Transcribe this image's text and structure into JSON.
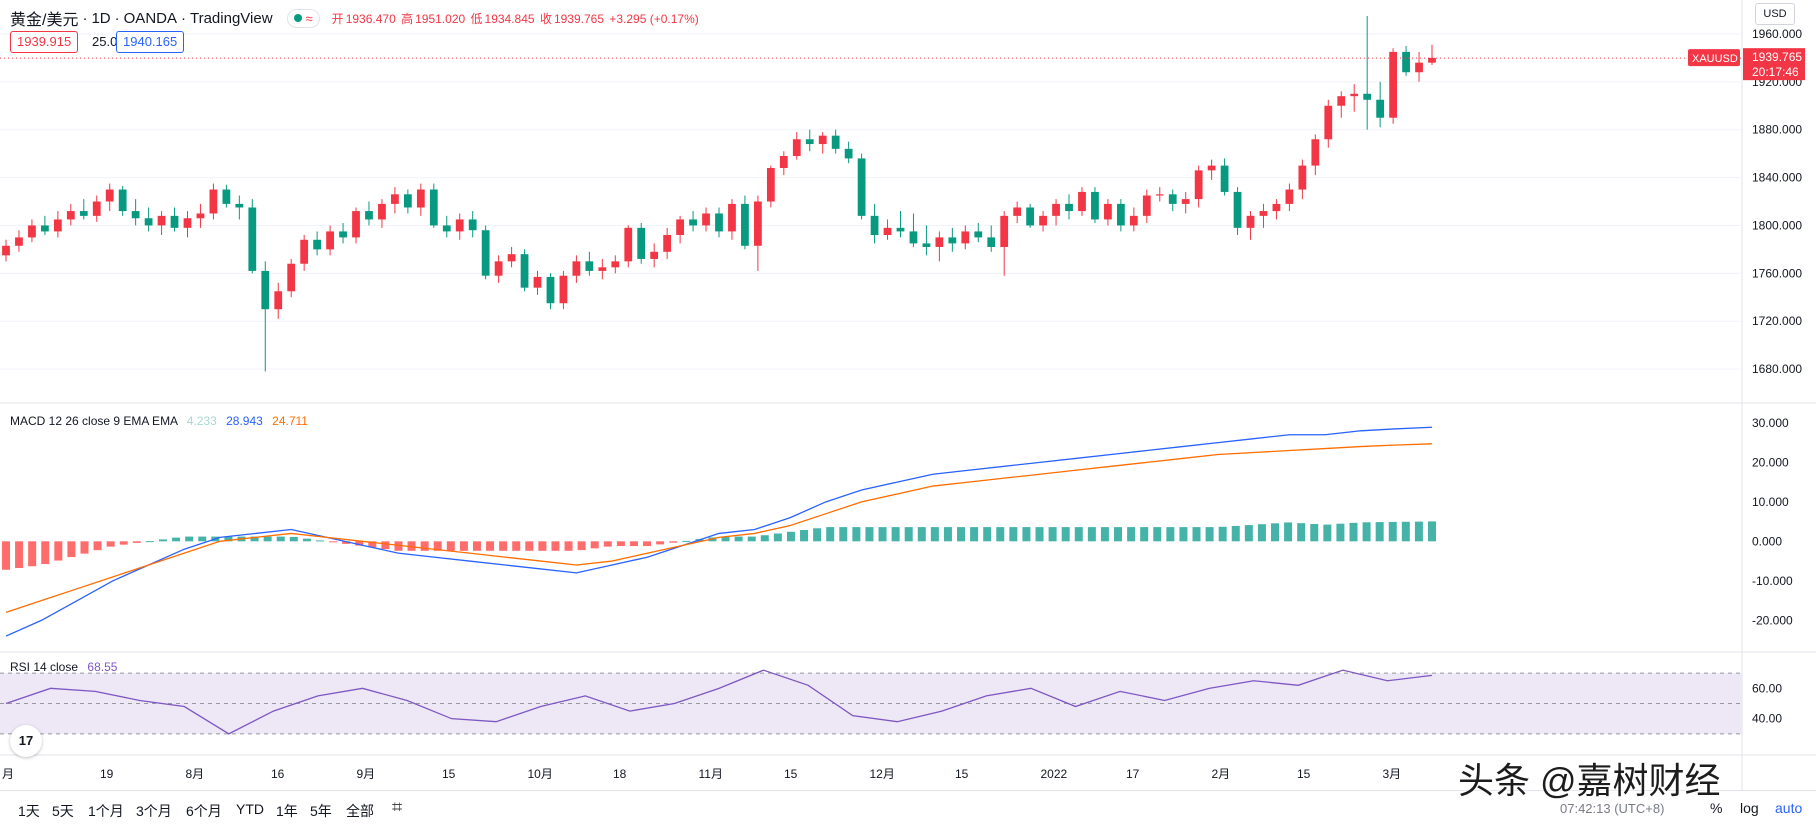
{
  "header": {
    "symbol_title": "黄金/美元",
    "interval": "1D",
    "broker": "OANDA",
    "platform": "TradingView",
    "open_label": "开",
    "open_value": "1936.470",
    "high_label": "高",
    "high_value": "1951.020",
    "low_label": "低",
    "low_value": "1934.845",
    "close_label": "收",
    "close_value": "1939.765",
    "change": "+3.295 (+0.17%)",
    "market_status_icon": "market-open-dot-icon",
    "wave_icon": "≈"
  },
  "quote": {
    "bid": "1939.915",
    "spread": "25.0",
    "ask": "1940.165"
  },
  "currency_selector": "USD",
  "price_axis": {
    "ticks": [
      "1960.000",
      "1920.000",
      "1880.000",
      "1840.000",
      "1800.000",
      "1760.000",
      "1720.000",
      "1680.000"
    ],
    "top_partial": "0"
  },
  "last_price_tag": {
    "symbol": "XAUUSD",
    "price": "1939.765",
    "countdown": "20:17:46"
  },
  "macd": {
    "label": "MACD 12 26 close 9 EMA EMA",
    "hist_value": "4.233",
    "macd_value": "28.943",
    "signal_value": "24.711",
    "ticks": [
      "30.000",
      "20.000",
      "10.000",
      "0.000",
      "-10.000",
      "-20.000"
    ]
  },
  "rsi": {
    "label": "RSI 14 close",
    "value": "68.55",
    "ticks": [
      "60.00",
      "40.00"
    ]
  },
  "time_axis": [
    "月",
    "19",
    "8月",
    "16",
    "9月",
    "15",
    "10月",
    "18",
    "11月",
    "15",
    "12月",
    "15",
    "2022",
    "17",
    "2月",
    "15",
    "3月"
  ],
  "range_buttons": [
    "1天",
    "5天",
    "1个月",
    "3个月",
    "6个月",
    "YTD",
    "1年",
    "5年",
    "全部"
  ],
  "compare_icon": "calendar-range-icon",
  "time_readout": "07:42:13 (UTC+8)",
  "axis_buttons": {
    "percent": "%",
    "log": "log",
    "auto": "auto"
  },
  "logo_text": "17",
  "watermark": "头条 @嘉树财经",
  "colors": {
    "up": "#f23645",
    "down": "#089981",
    "macd_line": "#2962ff",
    "signal_line": "#ff6d00",
    "rsi_line": "#7e57c2",
    "rsi_band": "#ede7f6"
  },
  "chart_data": [
    {
      "type": "candlestick",
      "title": "",
      "ylim": [
        1660,
        1980
      ],
      "series": [
        {
          "values": [
            [
              1775,
              1788,
              1770,
              1783
            ],
            [
              1783,
              1796,
              1778,
              1790
            ],
            [
              1790,
              1805,
              1786,
              1800
            ],
            [
              1800,
              1808,
              1792,
              1795
            ],
            [
              1795,
              1812,
              1790,
              1805
            ],
            [
              1805,
              1818,
              1800,
              1812
            ],
            [
              1812,
              1822,
              1805,
              1808
            ],
            [
              1808,
              1825,
              1803,
              1820
            ],
            [
              1820,
              1835,
              1812,
              1830
            ],
            [
              1830,
              1833,
              1808,
              1812
            ],
            [
              1812,
              1822,
              1800,
              1806
            ],
            [
              1806,
              1815,
              1795,
              1800
            ],
            [
              1800,
              1812,
              1792,
              1808
            ],
            [
              1808,
              1815,
              1795,
              1798
            ],
            [
              1798,
              1812,
              1790,
              1806
            ],
            [
              1806,
              1818,
              1798,
              1810
            ],
            [
              1810,
              1835,
              1805,
              1830
            ],
            [
              1830,
              1834,
              1815,
              1818
            ],
            [
              1818,
              1825,
              1805,
              1815
            ],
            [
              1815,
              1822,
              1760,
              1762
            ],
            [
              1762,
              1770,
              1678,
              1730
            ],
            [
              1730,
              1752,
              1722,
              1745
            ],
            [
              1745,
              1772,
              1740,
              1768
            ],
            [
              1768,
              1792,
              1762,
              1788
            ],
            [
              1788,
              1795,
              1775,
              1780
            ],
            [
              1780,
              1800,
              1775,
              1795
            ],
            [
              1795,
              1802,
              1785,
              1790
            ],
            [
              1790,
              1815,
              1785,
              1812
            ],
            [
              1812,
              1820,
              1800,
              1805
            ],
            [
              1805,
              1822,
              1798,
              1818
            ],
            [
              1818,
              1832,
              1810,
              1826
            ],
            [
              1826,
              1830,
              1810,
              1815
            ],
            [
              1815,
              1835,
              1808,
              1830
            ],
            [
              1830,
              1835,
              1798,
              1800
            ],
            [
              1800,
              1808,
              1790,
              1795
            ],
            [
              1795,
              1810,
              1788,
              1805
            ],
            [
              1805,
              1812,
              1790,
              1796
            ],
            [
              1796,
              1800,
              1755,
              1758
            ],
            [
              1758,
              1775,
              1752,
              1770
            ],
            [
              1770,
              1782,
              1765,
              1776
            ],
            [
              1776,
              1780,
              1745,
              1748
            ],
            [
              1748,
              1762,
              1742,
              1757
            ],
            [
              1757,
              1760,
              1730,
              1735
            ],
            [
              1735,
              1762,
              1730,
              1758
            ],
            [
              1758,
              1775,
              1752,
              1770
            ],
            [
              1770,
              1778,
              1758,
              1762
            ],
            [
              1762,
              1772,
              1755,
              1765
            ],
            [
              1765,
              1775,
              1760,
              1770
            ],
            [
              1770,
              1800,
              1765,
              1798
            ],
            [
              1798,
              1802,
              1768,
              1772
            ],
            [
              1772,
              1785,
              1765,
              1778
            ],
            [
              1778,
              1798,
              1772,
              1792
            ],
            [
              1792,
              1808,
              1785,
              1805
            ],
            [
              1805,
              1812,
              1795,
              1800
            ],
            [
              1800,
              1815,
              1795,
              1810
            ],
            [
              1810,
              1815,
              1790,
              1795
            ],
            [
              1795,
              1822,
              1788,
              1818
            ],
            [
              1818,
              1825,
              1780,
              1783
            ],
            [
              1783,
              1825,
              1762,
              1820
            ],
            [
              1820,
              1850,
              1815,
              1848
            ],
            [
              1848,
              1862,
              1842,
              1858
            ],
            [
              1858,
              1878,
              1855,
              1872
            ],
            [
              1872,
              1880,
              1862,
              1868
            ],
            [
              1868,
              1878,
              1860,
              1875
            ],
            [
              1875,
              1880,
              1860,
              1864
            ],
            [
              1864,
              1870,
              1852,
              1856
            ],
            [
              1856,
              1860,
              1805,
              1808
            ],
            [
              1808,
              1818,
              1785,
              1792
            ],
            [
              1792,
              1805,
              1788,
              1798
            ],
            [
              1798,
              1812,
              1790,
              1795
            ],
            [
              1795,
              1810,
              1782,
              1785
            ],
            [
              1785,
              1800,
              1775,
              1782
            ],
            [
              1782,
              1795,
              1770,
              1790
            ],
            [
              1790,
              1798,
              1778,
              1785
            ],
            [
              1785,
              1800,
              1780,
              1795
            ],
            [
              1795,
              1802,
              1786,
              1790
            ],
            [
              1790,
              1800,
              1778,
              1782
            ],
            [
              1782,
              1812,
              1758,
              1808
            ],
            [
              1808,
              1820,
              1802,
              1815
            ],
            [
              1815,
              1818,
              1798,
              1800
            ],
            [
              1800,
              1812,
              1795,
              1808
            ],
            [
              1808,
              1822,
              1800,
              1818
            ],
            [
              1818,
              1826,
              1805,
              1812
            ],
            [
              1812,
              1832,
              1808,
              1828
            ],
            [
              1828,
              1832,
              1802,
              1805
            ],
            [
              1805,
              1822,
              1800,
              1818
            ],
            [
              1818,
              1822,
              1795,
              1800
            ],
            [
              1800,
              1815,
              1795,
              1808
            ],
            [
              1808,
              1830,
              1802,
              1825
            ],
            [
              1825,
              1832,
              1820,
              1826
            ],
            [
              1826,
              1830,
              1812,
              1818
            ],
            [
              1818,
              1828,
              1810,
              1822
            ],
            [
              1822,
              1850,
              1815,
              1846
            ],
            [
              1846,
              1855,
              1838,
              1850
            ],
            [
              1850,
              1856,
              1825,
              1828
            ],
            [
              1828,
              1832,
              1792,
              1798
            ],
            [
              1798,
              1812,
              1788,
              1808
            ],
            [
              1808,
              1818,
              1798,
              1812
            ],
            [
              1812,
              1822,
              1805,
              1818
            ],
            [
              1818,
              1835,
              1812,
              1830
            ],
            [
              1830,
              1855,
              1822,
              1850
            ],
            [
              1850,
              1876,
              1842,
              1872
            ],
            [
              1872,
              1905,
              1865,
              1900
            ],
            [
              1900,
              1912,
              1890,
              1908
            ],
            [
              1908,
              1918,
              1895,
              1910
            ],
            [
              1910,
              1975,
              1880,
              1905
            ],
            [
              1905,
              1920,
              1882,
              1890
            ],
            [
              1890,
              1948,
              1885,
              1945
            ],
            [
              1945,
              1950,
              1925,
              1928
            ],
            [
              1928,
              1945,
              1920,
              1936
            ],
            [
              1936,
              1951,
              1934,
              1940
            ]
          ]
        }
      ]
    },
    {
      "type": "line",
      "title": "MACD 12 26 close 9 EMA EMA",
      "ylim": [
        -25,
        32
      ],
      "series": [
        {
          "name": "MACD",
          "values": [
            -24,
            -20,
            -15,
            -10,
            -6,
            -2,
            1,
            2,
            3,
            1,
            -1,
            -3,
            -4,
            -5,
            -6,
            -7,
            -8,
            -6,
            -4,
            -1,
            2,
            3,
            6,
            10,
            13,
            15,
            17,
            18,
            19,
            20,
            21,
            22,
            23,
            24,
            25,
            26,
            27,
            27,
            28,
            28.5,
            28.9
          ]
        },
        {
          "name": "Signal",
          "values": [
            -18,
            -15,
            -12,
            -9,
            -6,
            -3,
            0,
            1,
            2,
            1,
            0,
            -1,
            -2,
            -3,
            -4,
            -5,
            -6,
            -5,
            -3,
            -1,
            1,
            2,
            4,
            7,
            10,
            12,
            14,
            15,
            16,
            17,
            18,
            19,
            20,
            21,
            22,
            22.5,
            23,
            23.5,
            24,
            24.4,
            24.7
          ]
        },
        {
          "name": "Histogram",
          "values": [
            4.2
          ]
        }
      ]
    },
    {
      "type": "line",
      "title": "RSI 14 close",
      "ylim": [
        20,
        80
      ],
      "series": [
        {
          "name": "RSI",
          "values": [
            50,
            60,
            58,
            52,
            48,
            30,
            45,
            55,
            60,
            52,
            40,
            38,
            48,
            55,
            45,
            50,
            60,
            72,
            62,
            42,
            38,
            45,
            55,
            60,
            48,
            58,
            52,
            60,
            65,
            62,
            72,
            65,
            68.55
          ]
        }
      ]
    }
  ]
}
